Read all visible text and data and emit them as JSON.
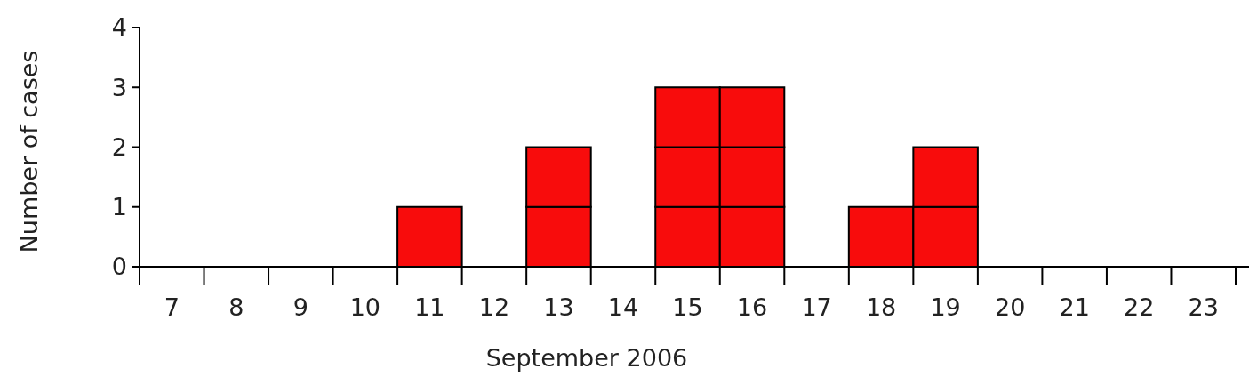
{
  "chart_data": {
    "type": "bar",
    "stacked": true,
    "xlabel": "September 2006",
    "ylabel": "Number of cases",
    "categories": [
      "7",
      "8",
      "9",
      "10",
      "11",
      "12",
      "13",
      "14",
      "15",
      "16",
      "17",
      "18",
      "19",
      "20",
      "21",
      "22",
      "23"
    ],
    "series": [
      {
        "color": "#f80c0c",
        "values": [
          0,
          0,
          0,
          0,
          1,
          0,
          1,
          0,
          1,
          1,
          0,
          1,
          1,
          0,
          0,
          0,
          0
        ]
      },
      {
        "color": "#f80c0c",
        "values": [
          0,
          0,
          0,
          0,
          0,
          0,
          1,
          0,
          1,
          1,
          0,
          0,
          1,
          0,
          0,
          0,
          0
        ]
      },
      {
        "color": "#f80c0c",
        "values": [
          0,
          0,
          0,
          0,
          0,
          0,
          0,
          0,
          1,
          1,
          0,
          0,
          0,
          0,
          0,
          0,
          0
        ]
      }
    ],
    "ylim": [
      0,
      4
    ],
    "yticks": [
      0,
      1,
      2,
      3,
      4
    ],
    "grid": false
  }
}
